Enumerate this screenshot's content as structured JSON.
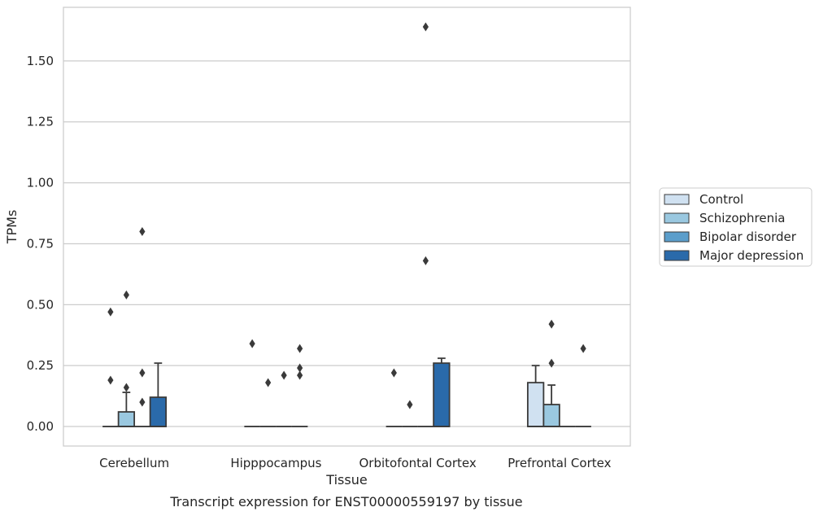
{
  "chart_data": {
    "type": "box",
    "title": "",
    "caption": "Transcript expression for ENST00000559197 by tissue",
    "xlabel": "Tissue",
    "ylabel": "TPMs",
    "ylim": [
      -0.08,
      1.72
    ],
    "yticks": [
      0.0,
      0.25,
      0.5,
      0.75,
      1.0,
      1.25,
      1.5
    ],
    "ytick_labels": [
      "0.00",
      "0.25",
      "0.50",
      "0.75",
      "1.00",
      "1.25",
      "1.50"
    ],
    "grid": "horizontal",
    "legend_position": "right",
    "categories": [
      "Cerebellum",
      "Hipppocampus",
      "Orbitofontal Cortex",
      "Prefrontal Cortex"
    ],
    "series": [
      {
        "name": "Control",
        "color": "#d0e1f1",
        "boxes": [
          {
            "q1": 0,
            "median": 0,
            "q3": 0,
            "whisker_low": 0,
            "whisker_high": 0,
            "outliers": [
              0.19,
              0.47
            ]
          },
          {
            "q1": 0,
            "median": 0,
            "q3": 0,
            "whisker_low": 0,
            "whisker_high": 0,
            "outliers": [
              0.34
            ]
          },
          {
            "q1": 0,
            "median": 0,
            "q3": 0,
            "whisker_low": 0,
            "whisker_high": 0,
            "outliers": [
              0.22
            ]
          },
          {
            "q1": 0,
            "median": 0,
            "q3": 0.18,
            "whisker_low": 0,
            "whisker_high": 0.25,
            "outliers": []
          }
        ]
      },
      {
        "name": "Schizophrenia",
        "color": "#9ac8e0",
        "boxes": [
          {
            "q1": 0,
            "median": 0,
            "q3": 0.06,
            "whisker_low": 0,
            "whisker_high": 0.14,
            "outliers": [
              0.16,
              0.54
            ]
          },
          {
            "q1": 0,
            "median": 0,
            "q3": 0,
            "whisker_low": 0,
            "whisker_high": 0,
            "outliers": [
              0.18
            ]
          },
          {
            "q1": 0,
            "median": 0,
            "q3": 0,
            "whisker_low": 0,
            "whisker_high": 0,
            "outliers": [
              0.09
            ]
          },
          {
            "q1": 0,
            "median": 0,
            "q3": 0.09,
            "whisker_low": 0,
            "whisker_high": 0.17,
            "outliers": [
              0.26,
              0.42
            ]
          }
        ]
      },
      {
        "name": "Bipolar disorder",
        "color": "#5b9ecb",
        "boxes": [
          {
            "q1": 0,
            "median": 0,
            "q3": 0,
            "whisker_low": 0,
            "whisker_high": 0,
            "outliers": [
              0.1,
              0.22,
              0.8
            ]
          },
          {
            "q1": 0,
            "median": 0,
            "q3": 0,
            "whisker_low": 0,
            "whisker_high": 0,
            "outliers": [
              0.21
            ]
          },
          {
            "q1": 0,
            "median": 0,
            "q3": 0,
            "whisker_low": 0,
            "whisker_high": 0,
            "outliers": [
              0.68,
              1.64
            ]
          },
          {
            "q1": 0,
            "median": 0,
            "q3": 0,
            "whisker_low": 0,
            "whisker_high": 0,
            "outliers": []
          }
        ]
      },
      {
        "name": "Major depression",
        "color": "#2a6aaa",
        "boxes": [
          {
            "q1": 0,
            "median": 0,
            "q3": 0.12,
            "whisker_low": 0,
            "whisker_high": 0.26,
            "outliers": []
          },
          {
            "q1": 0,
            "median": 0,
            "q3": 0,
            "whisker_low": 0,
            "whisker_high": 0,
            "outliers": [
              0.21,
              0.24,
              0.32
            ]
          },
          {
            "q1": 0,
            "median": 0,
            "q3": 0.26,
            "whisker_low": 0,
            "whisker_high": 0.28,
            "outliers": []
          },
          {
            "q1": 0,
            "median": 0,
            "q3": 0,
            "whisker_low": 0,
            "whisker_high": 0,
            "outliers": [
              0.32
            ]
          }
        ]
      }
    ]
  }
}
